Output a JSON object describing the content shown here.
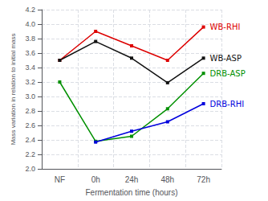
{
  "chart_data": {
    "type": "line",
    "categories": [
      "NF",
      "0h",
      "24h",
      "48h",
      "72h"
    ],
    "series": [
      {
        "name": "WB-RHI",
        "color": "#dd0000",
        "values": [
          3.5,
          3.9,
          3.7,
          3.5,
          3.96
        ]
      },
      {
        "name": "WB-ASP",
        "color": "#111111",
        "values": [
          3.5,
          3.76,
          3.53,
          3.19,
          3.53
        ]
      },
      {
        "name": "DRB-ASP",
        "color": "#009000",
        "values": [
          3.2,
          2.38,
          2.45,
          2.83,
          3.32
        ]
      },
      {
        "name": "DRB-RHI",
        "color": "#0000dd",
        "values": [
          null,
          2.37,
          2.52,
          2.65,
          2.9
        ]
      }
    ],
    "xlabel": "Fermentation time (hours)",
    "ylabel": "Mass variation in relation to initial mass",
    "ylim": [
      2.0,
      4.2
    ],
    "yticks": [
      {
        "value": 2.0,
        "label": "2.0"
      },
      2.2,
      2.4,
      2.6,
      2.8,
      {
        "value": 3.0,
        "label": "3.0"
      },
      3.2,
      3.4,
      3.6,
      3.8,
      {
        "value": 4.0,
        "label": "4.0"
      },
      4.2
    ],
    "grid": true,
    "marker": "square"
  }
}
